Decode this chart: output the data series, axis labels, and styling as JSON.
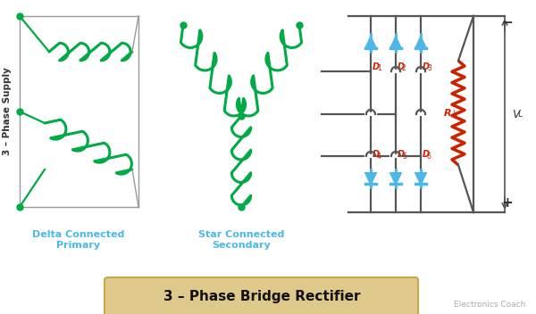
{
  "title": "3 – Phase Bridge Rectifier",
  "background_color": "#ffffff",
  "blue": "#4db8e8",
  "green": "#00aa44",
  "red_col": "#cc2200",
  "dark": "#555555",
  "watermark": "Electronics Coach",
  "delta_label": "Delta Connected\nPrimary",
  "star_label": "Star Connected\nSecondary",
  "phase_label": "3 – Phase Supply",
  "title_bg": "#dfc98a",
  "title_border": "#c8a84b"
}
